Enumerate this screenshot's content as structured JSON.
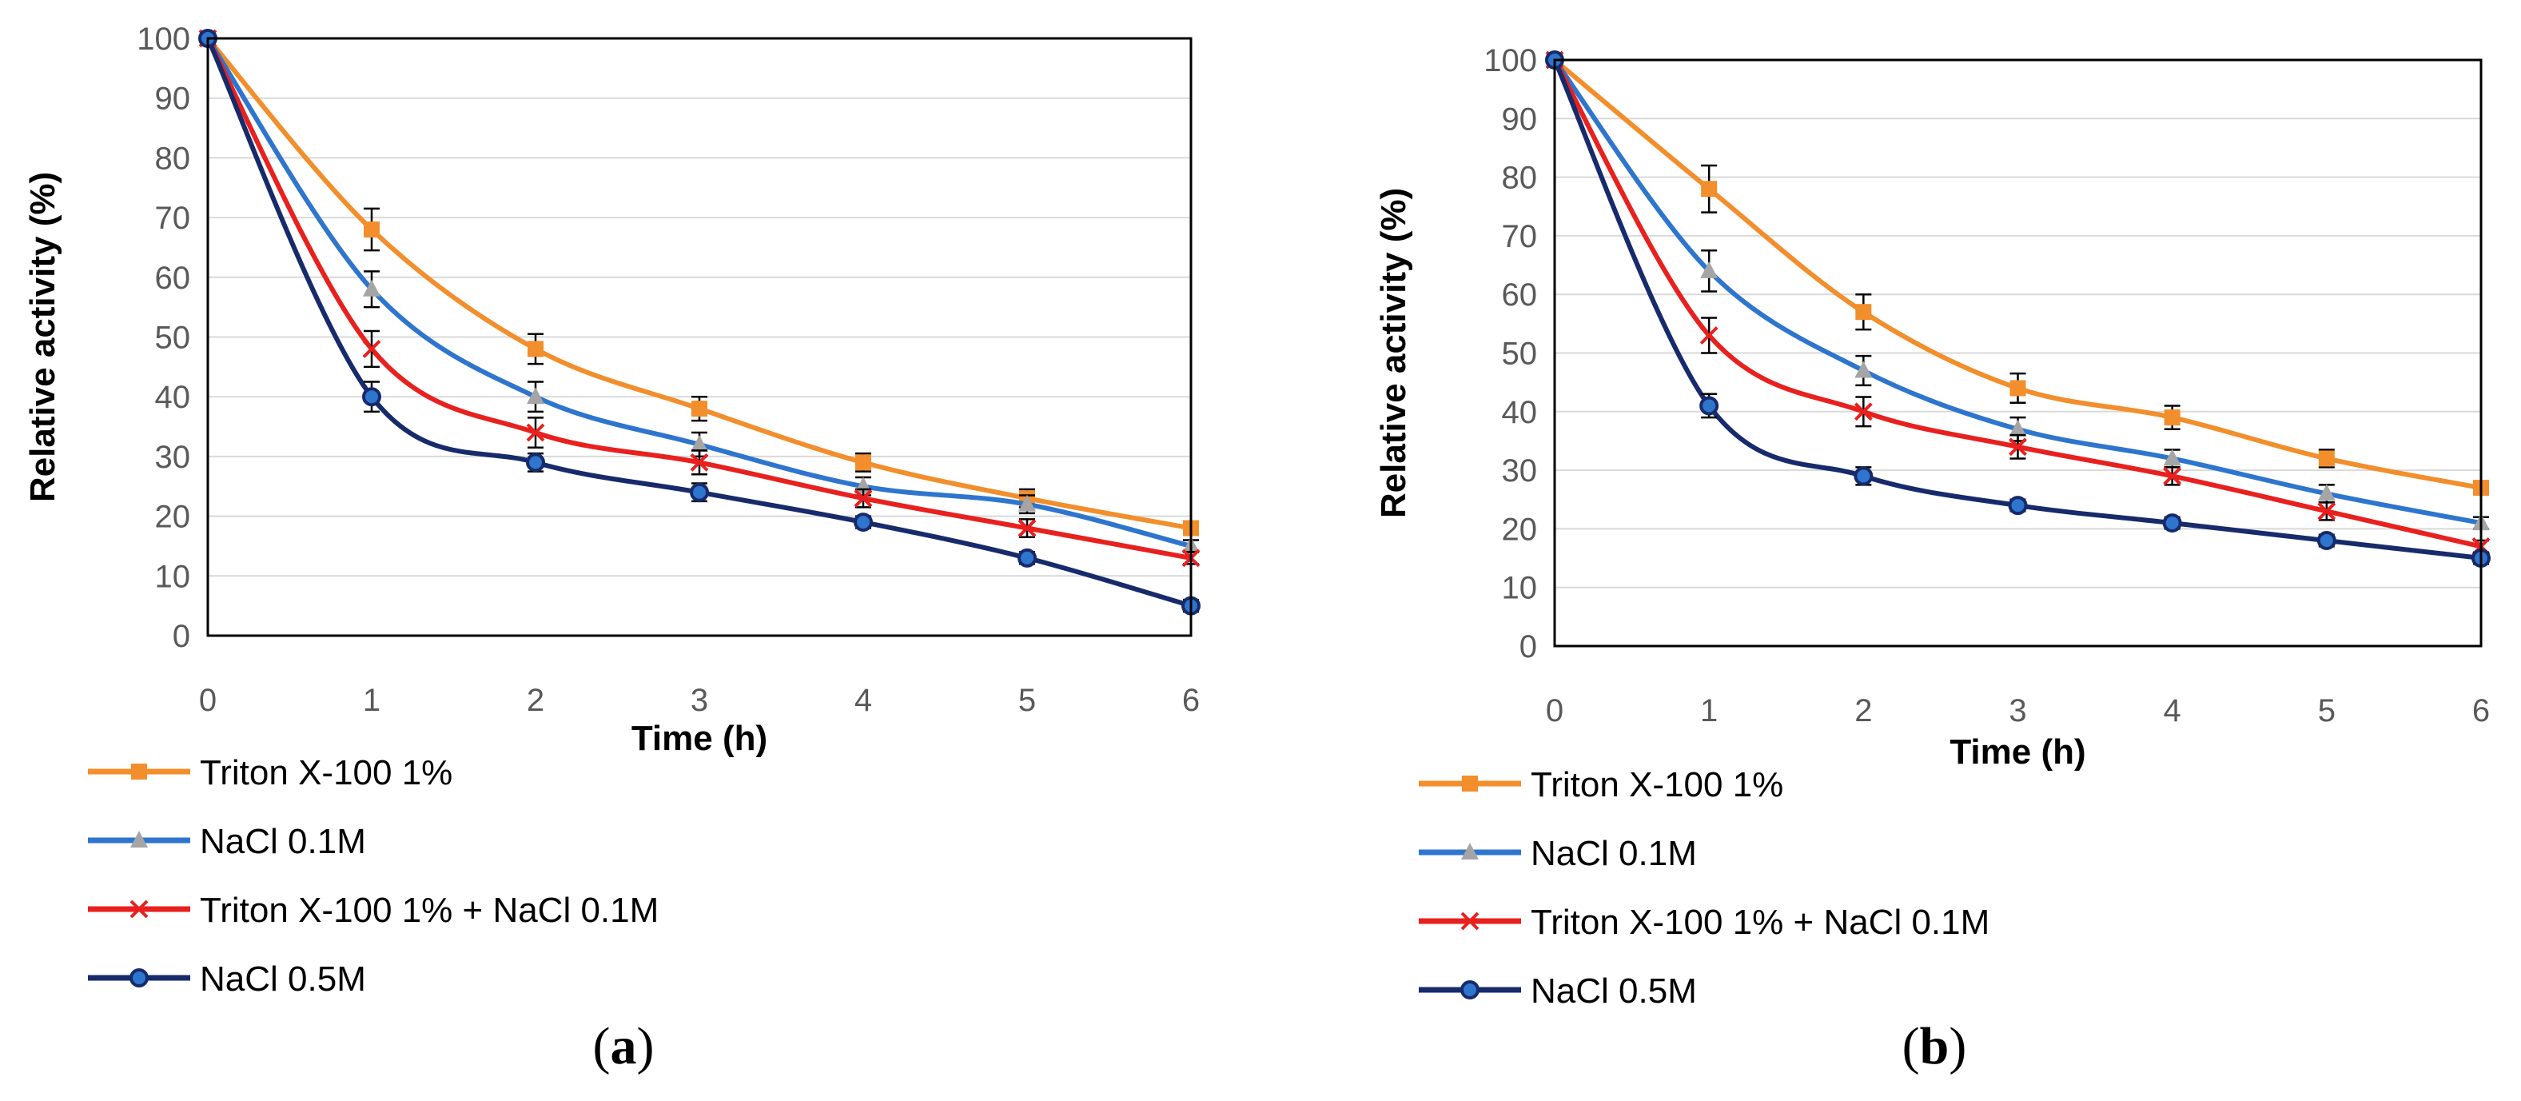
{
  "chart_data": [
    {
      "type": "line",
      "panel_label": "(a)",
      "panel_letter": "a",
      "title": "",
      "xlabel": "Time (h)",
      "ylabel": "Relative activity (%)",
      "x": [
        0,
        1,
        2,
        3,
        4,
        5,
        6
      ],
      "xlim": [
        0,
        6
      ],
      "ylim": [
        0,
        100
      ],
      "x_ticks": [
        "0",
        "1",
        "2",
        "3",
        "4",
        "5",
        "6"
      ],
      "y_ticks": [
        "0",
        "10",
        "20",
        "30",
        "40",
        "50",
        "60",
        "70",
        "80",
        "90",
        "100"
      ],
      "grid": true,
      "legend_position": "bottom-left",
      "series": [
        {
          "name": "Triton X-100 1%",
          "color": "#F28E2B",
          "marker": "square",
          "values": [
            100,
            68,
            48,
            38,
            29,
            23,
            18
          ],
          "errors": [
            0,
            3.5,
            2.5,
            2,
            1.5,
            1.5,
            1
          ]
        },
        {
          "name": "NaCl 0.1M",
          "color": "#2E75CE",
          "marker": "triangle",
          "marker_color": "#A5A5A5",
          "values": [
            100,
            58,
            40,
            32,
            25,
            22,
            15
          ],
          "errors": [
            0,
            3,
            2.5,
            2,
            1.5,
            1.5,
            1
          ]
        },
        {
          "name": "Triton X-100 1% + NaCl 0.1M",
          "color": "#E8201E",
          "marker": "x",
          "values": [
            100,
            48,
            34,
            29,
            23,
            18,
            13
          ],
          "errors": [
            0,
            3,
            2.5,
            2,
            1.5,
            1.5,
            1
          ]
        },
        {
          "name": "NaCl 0.5M",
          "color": "#172A6B",
          "marker": "circle",
          "values": [
            100,
            40,
            29,
            24,
            19,
            13,
            5
          ],
          "errors": [
            0,
            2.5,
            1.5,
            1.5,
            1,
            1,
            1
          ]
        }
      ]
    },
    {
      "type": "line",
      "panel_label": "(b)",
      "panel_letter": "b",
      "title": "",
      "xlabel": "Time (h)",
      "ylabel": "Relative activity (%)",
      "x": [
        0,
        1,
        2,
        3,
        4,
        5,
        6
      ],
      "xlim": [
        0,
        6
      ],
      "ylim": [
        0,
        100
      ],
      "x_ticks": [
        "0",
        "1",
        "2",
        "3",
        "4",
        "5",
        "6"
      ],
      "y_ticks": [
        "0",
        "10",
        "20",
        "30",
        "40",
        "50",
        "60",
        "70",
        "80",
        "90",
        "100"
      ],
      "grid": true,
      "legend_position": "bottom-left",
      "series": [
        {
          "name": "Triton X-100 1%",
          "color": "#F28E2B",
          "marker": "square",
          "values": [
            100,
            78,
            57,
            44,
            39,
            32,
            27
          ],
          "errors": [
            0,
            4,
            3,
            2.5,
            2,
            1.5,
            1
          ]
        },
        {
          "name": "NaCl 0.1M",
          "color": "#2E75CE",
          "marker": "triangle",
          "marker_color": "#A5A5A5",
          "values": [
            100,
            64,
            47,
            37,
            32,
            26,
            21
          ],
          "errors": [
            0,
            3.5,
            2.5,
            2,
            1.5,
            1.5,
            1
          ]
        },
        {
          "name": "Triton X-100 1% + NaCl 0.1M",
          "color": "#E8201E",
          "marker": "x",
          "values": [
            100,
            53,
            40,
            34,
            29,
            23,
            17
          ],
          "errors": [
            0,
            3,
            2.5,
            2,
            1.5,
            1.5,
            1
          ]
        },
        {
          "name": "NaCl 0.5M",
          "color": "#172A6B",
          "marker": "circle",
          "values": [
            100,
            41,
            29,
            24,
            21,
            18,
            15
          ],
          "errors": [
            0,
            2,
            1.5,
            1,
            1,
            1,
            1
          ]
        }
      ]
    }
  ]
}
